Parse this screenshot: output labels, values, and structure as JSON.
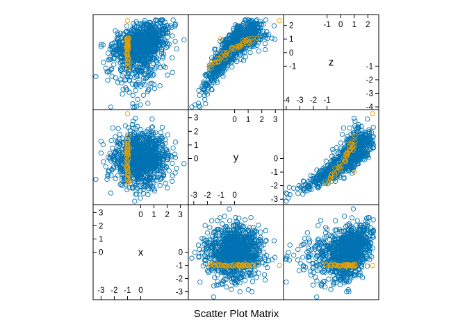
{
  "chart_data": {
    "type": "scatter",
    "title": "Scatter Plot Matrix",
    "variables": [
      "x",
      "y",
      "z"
    ],
    "diagonal_ticks": {
      "x": {
        "low": [
          "-3",
          "-2",
          "-1",
          "0"
        ],
        "high": [
          "0",
          "1",
          "2",
          "3"
        ]
      },
      "y": {
        "low": [
          "-3",
          "-2",
          "-1",
          "0"
        ],
        "high": [
          "0",
          "1",
          "2",
          "3"
        ]
      },
      "z": {
        "low": [
          "-4",
          "-3",
          "-2",
          "-1"
        ],
        "high": [
          "-1",
          "0",
          "1",
          "2"
        ]
      }
    },
    "ranges": {
      "x": [
        -3.6,
        3.6
      ],
      "y": [
        -3.4,
        3.6
      ],
      "z": [
        -4.2,
        2.8
      ]
    },
    "n_points": 1000,
    "highlight_count": 40,
    "colors": {
      "main": "#0072B2",
      "highlight": "#E69F00",
      "frame": "#000000"
    },
    "grid": false,
    "legend": "none"
  }
}
